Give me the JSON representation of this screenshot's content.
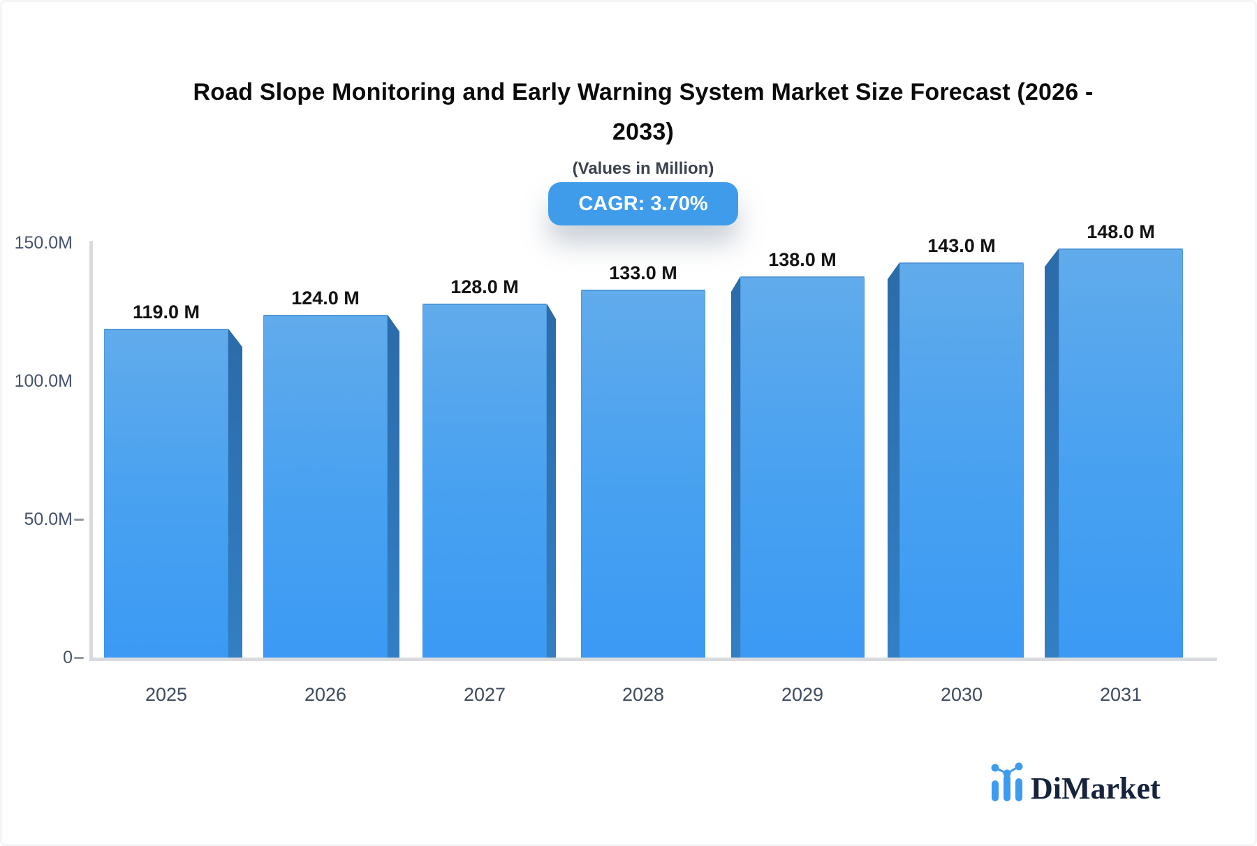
{
  "title_line1": "Road Slope Monitoring and Early Warning System Market Size Forecast (2026 -",
  "title_line2": "2033)",
  "subtitle": "(Values in Million)",
  "cagr_badge": "CAGR: 3.70%",
  "brand": {
    "name": "DiMarket",
    "icon": "dimarket-bars-logo-icon",
    "icon_color": "#3d9bf0",
    "text_color": "#16233c"
  },
  "colors": {
    "bar_face_top": "#61abeb",
    "bar_face_bottom": "#3b9af4",
    "bar_side_top": "#2b6ba9",
    "bar_side_bottom": "#327fc4",
    "badge_bg": "#3f9ceb",
    "badge_text": "#ffffff",
    "axis_line": "#d9dbdf",
    "tick_text": "#46526a",
    "value_text": "#121214",
    "title_text": "#0b0b0c"
  },
  "chart_data": {
    "type": "bar",
    "title": "Road Slope Monitoring and Early Warning System Market Size Forecast (2026 - 2033)",
    "subtitle": "(Values in Million)",
    "cagr_pct": 3.7,
    "unit": "Million",
    "categories": [
      "2025",
      "2026",
      "2027",
      "2028",
      "2029",
      "2030",
      "2031"
    ],
    "values": [
      119,
      124,
      128,
      133,
      138,
      143,
      148
    ],
    "value_labels": [
      "119.0 M",
      "124.0 M",
      "128.0 M",
      "133.0 M",
      "138.0 M",
      "143.0 M",
      "148.0 M"
    ],
    "y_ticks": [
      {
        "label": "150.0M",
        "value": 150
      },
      {
        "label": "100.0M",
        "value": 100
      },
      {
        "label": "50.0M",
        "value": 50
      },
      {
        "label": "0",
        "value": 0
      }
    ],
    "ylim": [
      0,
      150
    ],
    "grid": false,
    "legend": null,
    "bar_3d_effect": true
  }
}
